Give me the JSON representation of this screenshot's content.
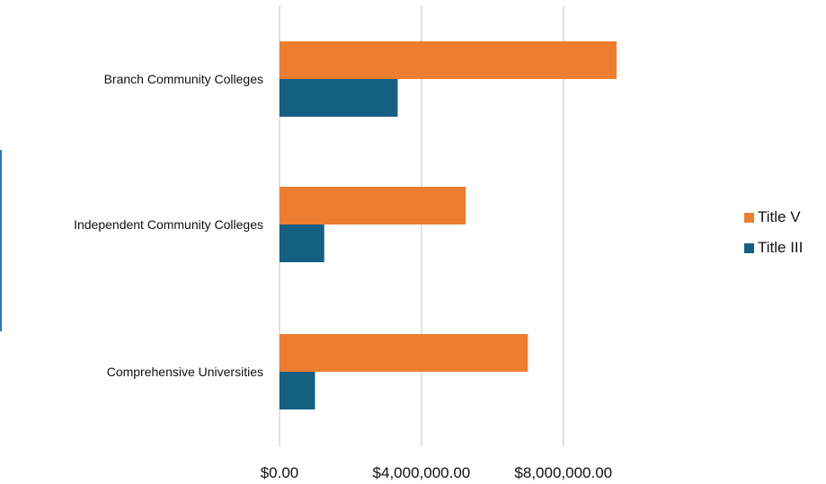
{
  "chart_data": {
    "type": "bar",
    "orientation": "horizontal",
    "categories": [
      "Branch Community Colleges",
      "Independent Community Colleges",
      "Comprehensive Universities"
    ],
    "series": [
      {
        "name": "Title V",
        "color": "#ed7d31",
        "values": [
          9500000,
          5250000,
          7000000
        ]
      },
      {
        "name": "Title III",
        "color": "#156082",
        "values": [
          3330000,
          1260000,
          1000000
        ]
      }
    ],
    "x_ticks": [
      0,
      4000000,
      8000000
    ],
    "x_tick_labels": [
      "$0.00",
      "$4,000,000.00",
      "$8,000,000.00"
    ],
    "xlim": [
      0,
      9500000
    ],
    "grid": true,
    "legend_position": "right"
  }
}
